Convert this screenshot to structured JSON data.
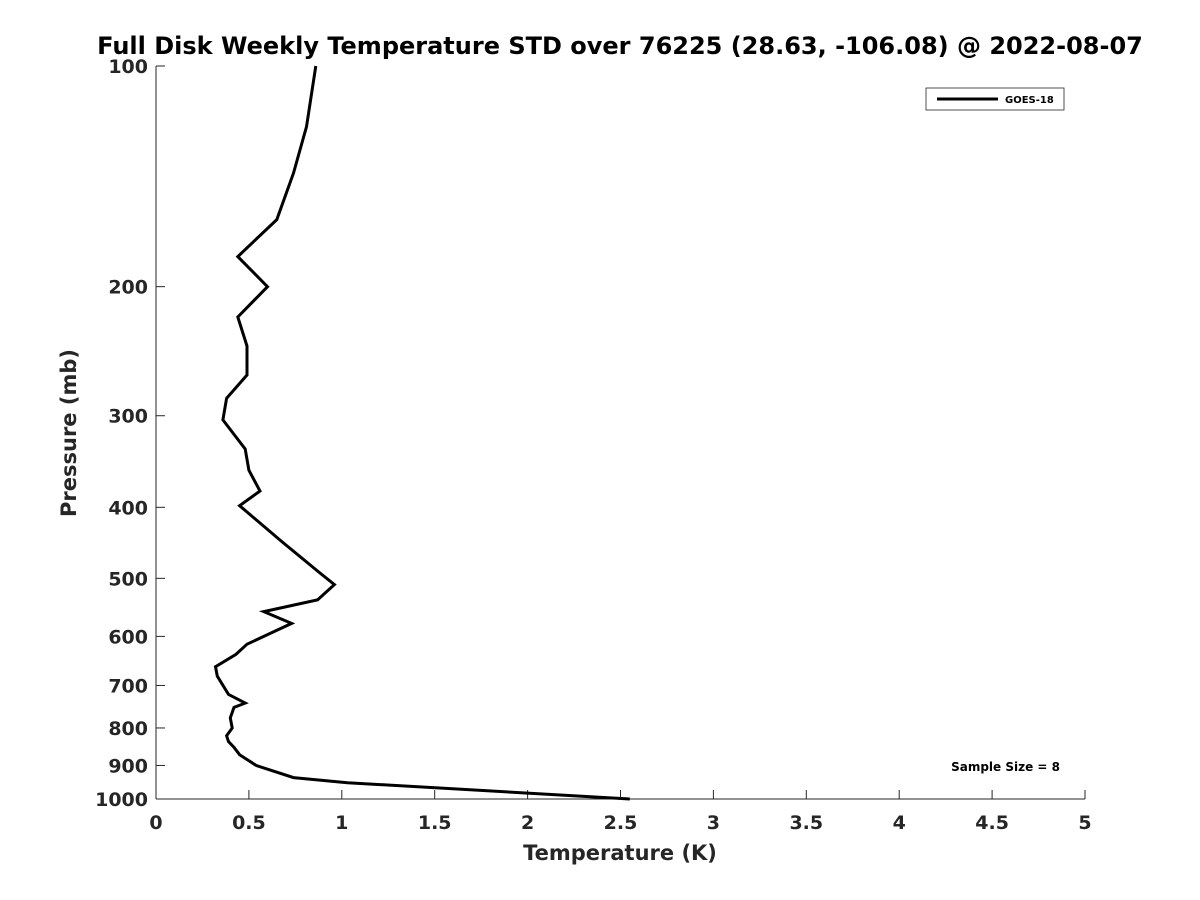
{
  "chart_data": {
    "type": "line",
    "title": "Full Disk Weekly Temperature STD over 76225 (28.63, -106.08) @ 2022-08-07",
    "xlabel": "Temperature (K)",
    "ylabel": "Pressure (mb)",
    "xlim": [
      0,
      5
    ],
    "ylim": [
      100,
      1000
    ],
    "y_scale": "log",
    "y_reversed": true,
    "x_ticks": [
      "0",
      "0.5",
      "1",
      "1.5",
      "2",
      "2.5",
      "3",
      "3.5",
      "4",
      "4.5",
      "5"
    ],
    "y_ticks": [
      "100",
      "200",
      "300",
      "400",
      "500",
      "600",
      "700",
      "800",
      "900",
      "1000"
    ],
    "grid": false,
    "legend_position": "top-right",
    "series": [
      {
        "name": "GOES-18",
        "color": "#000000",
        "x": [
          0.86,
          0.81,
          0.74,
          0.65,
          0.44,
          0.6,
          0.44,
          0.49,
          0.49,
          0.38,
          0.36,
          0.48,
          0.5,
          0.56,
          0.45,
          0.68,
          0.88,
          0.96,
          0.87,
          0.58,
          0.73,
          0.49,
          0.43,
          0.32,
          0.33,
          0.39,
          0.48,
          0.42,
          0.4,
          0.41,
          0.38,
          0.39,
          0.42,
          0.45,
          0.54,
          0.74,
          1.03,
          2.55
        ],
        "y": [
          100,
          121,
          140,
          162,
          182,
          200,
          220,
          241,
          264,
          284,
          304,
          333,
          356,
          380,
          398,
          446,
          491,
          510,
          535,
          555,
          576,
          615,
          635,
          660,
          680,
          720,
          740,
          750,
          775,
          800,
          820,
          835,
          850,
          870,
          900,
          935,
          950,
          1000
        ]
      }
    ],
    "annotations": [
      "Sample Size = 8"
    ]
  }
}
